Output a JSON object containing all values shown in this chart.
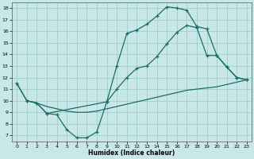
{
  "title": "",
  "xlabel": "Humidex (Indice chaleur)",
  "background_color": "#c8e8e8",
  "grid_color": "#a8d0d0",
  "line_color": "#1a6b6b",
  "xlim": [
    -0.5,
    23.5
  ],
  "ylim": [
    6.5,
    18.5
  ],
  "xticks": [
    0,
    1,
    2,
    3,
    4,
    5,
    6,
    7,
    8,
    9,
    10,
    11,
    12,
    13,
    14,
    15,
    16,
    17,
    18,
    19,
    20,
    21,
    22,
    23
  ],
  "yticks": [
    7,
    8,
    9,
    10,
    11,
    12,
    13,
    14,
    15,
    16,
    17,
    18
  ],
  "line1_x": [
    0,
    1,
    2,
    3,
    4,
    5,
    6,
    7,
    8,
    9,
    10,
    11,
    12,
    13,
    14,
    15,
    16,
    17,
    18,
    19,
    20,
    21,
    22,
    23
  ],
  "line1_y": [
    11.5,
    10.0,
    9.8,
    8.9,
    8.8,
    7.5,
    6.8,
    6.8,
    7.3,
    9.9,
    13.0,
    15.8,
    16.1,
    16.6,
    17.3,
    18.1,
    18.0,
    17.8,
    16.4,
    16.2,
    13.9,
    12.9,
    12.0,
    11.8
  ],
  "line2_x": [
    0,
    1,
    2,
    3,
    9,
    10,
    11,
    12,
    13,
    14,
    15,
    16,
    17,
    18,
    19,
    20,
    21,
    22,
    23
  ],
  "line2_y": [
    11.5,
    10.0,
    9.8,
    8.9,
    9.9,
    11.0,
    12.0,
    12.8,
    13.0,
    13.8,
    14.9,
    15.9,
    16.5,
    16.3,
    13.9,
    13.9,
    12.9,
    12.0,
    11.8
  ],
  "line3_x": [
    1,
    2,
    3,
    4,
    5,
    6,
    7,
    8,
    9,
    10,
    11,
    12,
    13,
    14,
    15,
    16,
    17,
    18,
    19,
    20,
    21,
    22,
    23
  ],
  "line3_y": [
    10.0,
    9.8,
    9.5,
    9.3,
    9.1,
    9.0,
    9.0,
    9.1,
    9.3,
    9.5,
    9.7,
    9.9,
    10.1,
    10.3,
    10.5,
    10.7,
    10.9,
    11.0,
    11.1,
    11.2,
    11.4,
    11.6,
    11.8
  ]
}
